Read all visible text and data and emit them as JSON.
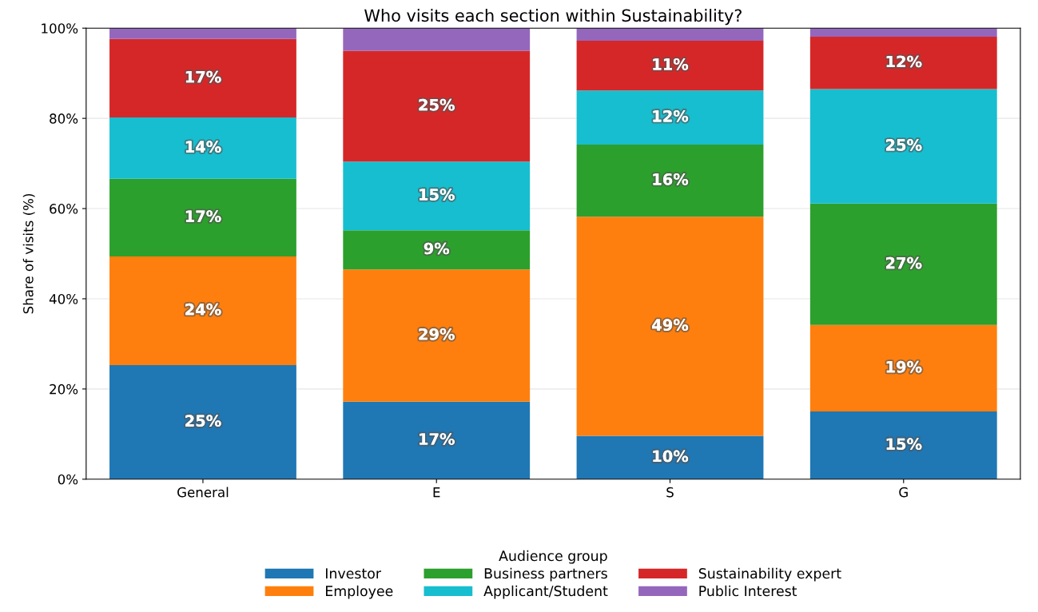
{
  "chart_data": {
    "type": "bar",
    "title": "Who visits each section within Sustainability?",
    "ylabel": "Share of visits (%)",
    "legend_title": "Audience group",
    "categories": [
      "General",
      "E",
      "S",
      "G"
    ],
    "stacked": true,
    "series": [
      {
        "name": "Investor",
        "color": "#1f77b4",
        "values": [
          25.3,
          17.2,
          9.6,
          15.0
        ],
        "value_labels": [
          "25%",
          "17%",
          "10%",
          "15%"
        ]
      },
      {
        "name": "Employee",
        "color": "#ff7f0e",
        "values": [
          24.1,
          29.3,
          48.6,
          19.2
        ],
        "value_labels": [
          "24%",
          "29%",
          "49%",
          "19%"
        ]
      },
      {
        "name": "Business partners",
        "color": "#2ca02c",
        "values": [
          17.2,
          8.7,
          16.0,
          26.9
        ],
        "value_labels": [
          "17%",
          "9%",
          "16%",
          "27%"
        ]
      },
      {
        "name": "Applicant/Student",
        "color": "#17becf",
        "values": [
          13.6,
          15.2,
          12.0,
          25.4
        ],
        "value_labels": [
          "14%",
          "15%",
          "12%",
          "25%"
        ]
      },
      {
        "name": "Sustainability expert",
        "color": "#d62728",
        "values": [
          17.4,
          24.6,
          11.0,
          11.6
        ],
        "value_labels": [
          "17%",
          "25%",
          "11%",
          "12%"
        ]
      },
      {
        "name": "Public Interest",
        "color": "#9467bd",
        "values": [
          2.4,
          5.0,
          2.8,
          1.9
        ],
        "value_labels": [
          null,
          null,
          null,
          null
        ]
      }
    ],
    "ylim": [
      0,
      100
    ],
    "yticks": [
      {
        "value": 0,
        "label": "0%"
      },
      {
        "value": 20,
        "label": "20%"
      },
      {
        "value": 40,
        "label": "40%"
      },
      {
        "value": 60,
        "label": "60%"
      },
      {
        "value": 80,
        "label": "80%"
      },
      {
        "value": 100,
        "label": "100%"
      }
    ],
    "grid": "y",
    "legend": "bottom"
  }
}
